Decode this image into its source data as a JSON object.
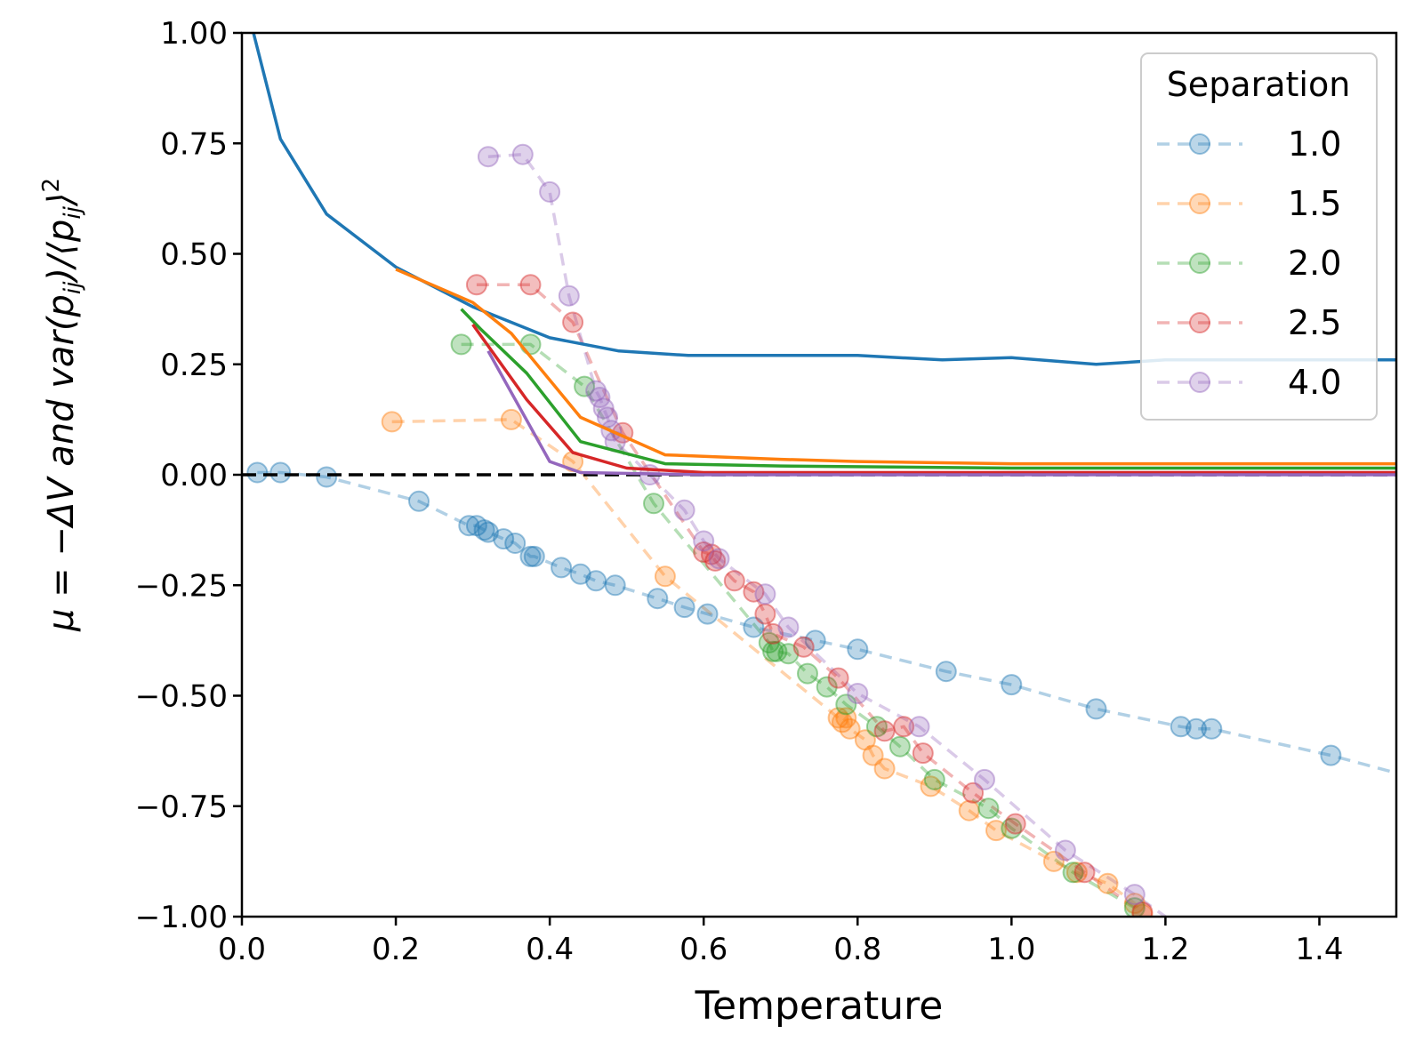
{
  "chart_data": {
    "type": "line",
    "title": "",
    "xlabel": "Temperature",
    "ylabel": "μ = − ΔV and var(p_ij)/⟨p_ij⟩²",
    "ylabel_parts": [
      "μ = −ΔV and ",
      "var",
      "(p",
      "ij",
      ")/⟨p",
      "ij",
      "⟩",
      "2"
    ],
    "xlim": [
      0.0,
      1.5
    ],
    "ylim": [
      -1.0,
      1.0
    ],
    "xticks": [
      0.0,
      0.2,
      0.4,
      0.6,
      0.8,
      1.0,
      1.2,
      1.4
    ],
    "xtick_labels": [
      "0.0",
      "0.2",
      "0.4",
      "0.6",
      "0.8",
      "1.0",
      "1.2",
      "1.4"
    ],
    "yticks": [
      1.0,
      0.75,
      0.5,
      0.25,
      0.0,
      -0.25,
      -0.5,
      -0.75,
      -1.0
    ],
    "ytick_labels": [
      "1.00",
      "0.75",
      "0.50",
      "0.25",
      "0.00",
      "−0.25",
      "−0.50",
      "−0.75",
      "−1.00"
    ],
    "grid": false,
    "reference_line": {
      "y": 0.0,
      "style": "dashed",
      "color": "#000000"
    },
    "legend": {
      "title": "Separation",
      "position": "top-right"
    },
    "series": [
      {
        "name": "1.0",
        "color": "#1f77b4",
        "markers": [
          [
            0.02,
            0.005
          ],
          [
            0.05,
            0.005
          ],
          [
            0.11,
            -0.005
          ],
          [
            0.23,
            -0.06
          ],
          [
            0.295,
            -0.115
          ],
          [
            0.305,
            -0.115
          ],
          [
            0.315,
            -0.125
          ],
          [
            0.32,
            -0.13
          ],
          [
            0.34,
            -0.145
          ],
          [
            0.355,
            -0.155
          ],
          [
            0.375,
            -0.185
          ],
          [
            0.38,
            -0.185
          ],
          [
            0.415,
            -0.21
          ],
          [
            0.44,
            -0.225
          ],
          [
            0.46,
            -0.24
          ],
          [
            0.485,
            -0.25
          ],
          [
            0.54,
            -0.28
          ],
          [
            0.575,
            -0.3
          ],
          [
            0.605,
            -0.315
          ],
          [
            0.665,
            -0.345
          ],
          [
            0.745,
            -0.375
          ],
          [
            0.8,
            -0.395
          ],
          [
            0.915,
            -0.445
          ],
          [
            1.0,
            -0.475
          ],
          [
            1.11,
            -0.53
          ],
          [
            1.22,
            -0.57
          ],
          [
            1.24,
            -0.575
          ],
          [
            1.26,
            -0.575
          ],
          [
            1.415,
            -0.635
          ]
        ],
        "dashed_extension": [
          1.5,
          -0.675
        ],
        "solid_line": [
          [
            0.015,
            1.0
          ],
          [
            0.05,
            0.76
          ],
          [
            0.11,
            0.59
          ],
          [
            0.2,
            0.47
          ],
          [
            0.3,
            0.38
          ],
          [
            0.4,
            0.31
          ],
          [
            0.49,
            0.28
          ],
          [
            0.58,
            0.27
          ],
          [
            0.7,
            0.27
          ],
          [
            0.8,
            0.27
          ],
          [
            0.91,
            0.26
          ],
          [
            1.0,
            0.265
          ],
          [
            1.11,
            0.25
          ],
          [
            1.2,
            0.26
          ],
          [
            1.3,
            0.26
          ],
          [
            1.5,
            0.26
          ]
        ]
      },
      {
        "name": "1.5",
        "color": "#ff7f0e",
        "markers": [
          [
            0.195,
            0.12
          ],
          [
            0.35,
            0.125
          ],
          [
            0.43,
            0.03
          ],
          [
            0.55,
            -0.23
          ],
          [
            0.775,
            -0.55
          ],
          [
            0.78,
            -0.56
          ],
          [
            0.785,
            -0.55
          ],
          [
            0.79,
            -0.575
          ],
          [
            0.81,
            -0.6
          ],
          [
            0.82,
            -0.635
          ],
          [
            0.835,
            -0.665
          ],
          [
            0.895,
            -0.705
          ],
          [
            0.945,
            -0.76
          ],
          [
            0.98,
            -0.805
          ],
          [
            1.055,
            -0.875
          ],
          [
            1.085,
            -0.9
          ],
          [
            1.125,
            -0.925
          ],
          [
            1.16,
            -0.97
          ],
          [
            1.17,
            -0.995
          ]
        ],
        "solid_line": [
          [
            0.2,
            0.465
          ],
          [
            0.3,
            0.39
          ],
          [
            0.35,
            0.32
          ],
          [
            0.44,
            0.13
          ],
          [
            0.55,
            0.045
          ],
          [
            0.7,
            0.035
          ],
          [
            0.8,
            0.03
          ],
          [
            1.0,
            0.025
          ],
          [
            1.5,
            0.025
          ]
        ]
      },
      {
        "name": "2.0",
        "color": "#2ca02c",
        "markers": [
          [
            0.285,
            0.295
          ],
          [
            0.375,
            0.295
          ],
          [
            0.445,
            0.2
          ],
          [
            0.535,
            -0.065
          ],
          [
            0.685,
            -0.38
          ],
          [
            0.69,
            -0.4
          ],
          [
            0.695,
            -0.4
          ],
          [
            0.71,
            -0.405
          ],
          [
            0.735,
            -0.45
          ],
          [
            0.76,
            -0.48
          ],
          [
            0.785,
            -0.52
          ],
          [
            0.825,
            -0.57
          ],
          [
            0.855,
            -0.615
          ],
          [
            0.9,
            -0.69
          ],
          [
            0.97,
            -0.755
          ],
          [
            1.0,
            -0.8
          ],
          [
            1.08,
            -0.9
          ],
          [
            1.16,
            -0.98
          ]
        ],
        "solid_line": [
          [
            0.285,
            0.375
          ],
          [
            0.31,
            0.33
          ],
          [
            0.37,
            0.23
          ],
          [
            0.44,
            0.075
          ],
          [
            0.55,
            0.025
          ],
          [
            0.7,
            0.02
          ],
          [
            1.0,
            0.015
          ],
          [
            1.5,
            0.015
          ]
        ]
      },
      {
        "name": "2.5",
        "color": "#d62728",
        "markers": [
          [
            0.305,
            0.43
          ],
          [
            0.375,
            0.43
          ],
          [
            0.43,
            0.345
          ],
          [
            0.495,
            0.095
          ],
          [
            0.6,
            -0.175
          ],
          [
            0.61,
            -0.18
          ],
          [
            0.615,
            -0.195
          ],
          [
            0.64,
            -0.24
          ],
          [
            0.665,
            -0.265
          ],
          [
            0.68,
            -0.315
          ],
          [
            0.69,
            -0.36
          ],
          [
            0.73,
            -0.39
          ],
          [
            0.775,
            -0.46
          ],
          [
            0.835,
            -0.58
          ],
          [
            0.86,
            -0.57
          ],
          [
            0.885,
            -0.63
          ],
          [
            0.95,
            -0.72
          ],
          [
            1.005,
            -0.79
          ],
          [
            1.095,
            -0.9
          ],
          [
            1.17,
            -0.99
          ]
        ],
        "solid_line": [
          [
            0.3,
            0.34
          ],
          [
            0.37,
            0.17
          ],
          [
            0.43,
            0.05
          ],
          [
            0.5,
            0.015
          ],
          [
            0.6,
            0.005
          ],
          [
            1.0,
            0.005
          ],
          [
            1.5,
            0.005
          ]
        ]
      },
      {
        "name": "4.0",
        "color": "#9467bd",
        "markers": [
          [
            0.32,
            0.72
          ],
          [
            0.365,
            0.725
          ],
          [
            0.4,
            0.64
          ],
          [
            0.425,
            0.405
          ],
          [
            0.46,
            0.19
          ],
          [
            0.465,
            0.175
          ],
          [
            0.47,
            0.15
          ],
          [
            0.475,
            0.13
          ],
          [
            0.48,
            0.1
          ],
          [
            0.485,
            0.075
          ],
          [
            0.53,
            0.0
          ],
          [
            0.575,
            -0.08
          ],
          [
            0.6,
            -0.15
          ],
          [
            0.62,
            -0.19
          ],
          [
            0.68,
            -0.27
          ],
          [
            0.71,
            -0.345
          ],
          [
            0.8,
            -0.495
          ],
          [
            0.88,
            -0.57
          ],
          [
            0.965,
            -0.69
          ],
          [
            1.07,
            -0.85
          ],
          [
            1.16,
            -0.95
          ]
        ],
        "dashed_extension": [
          1.2,
          -1.0
        ],
        "solid_line": [
          [
            0.32,
            0.28
          ],
          [
            0.4,
            0.03
          ],
          [
            0.44,
            0.005
          ],
          [
            0.6,
            0.0
          ],
          [
            1.5,
            0.0
          ]
        ]
      }
    ]
  }
}
